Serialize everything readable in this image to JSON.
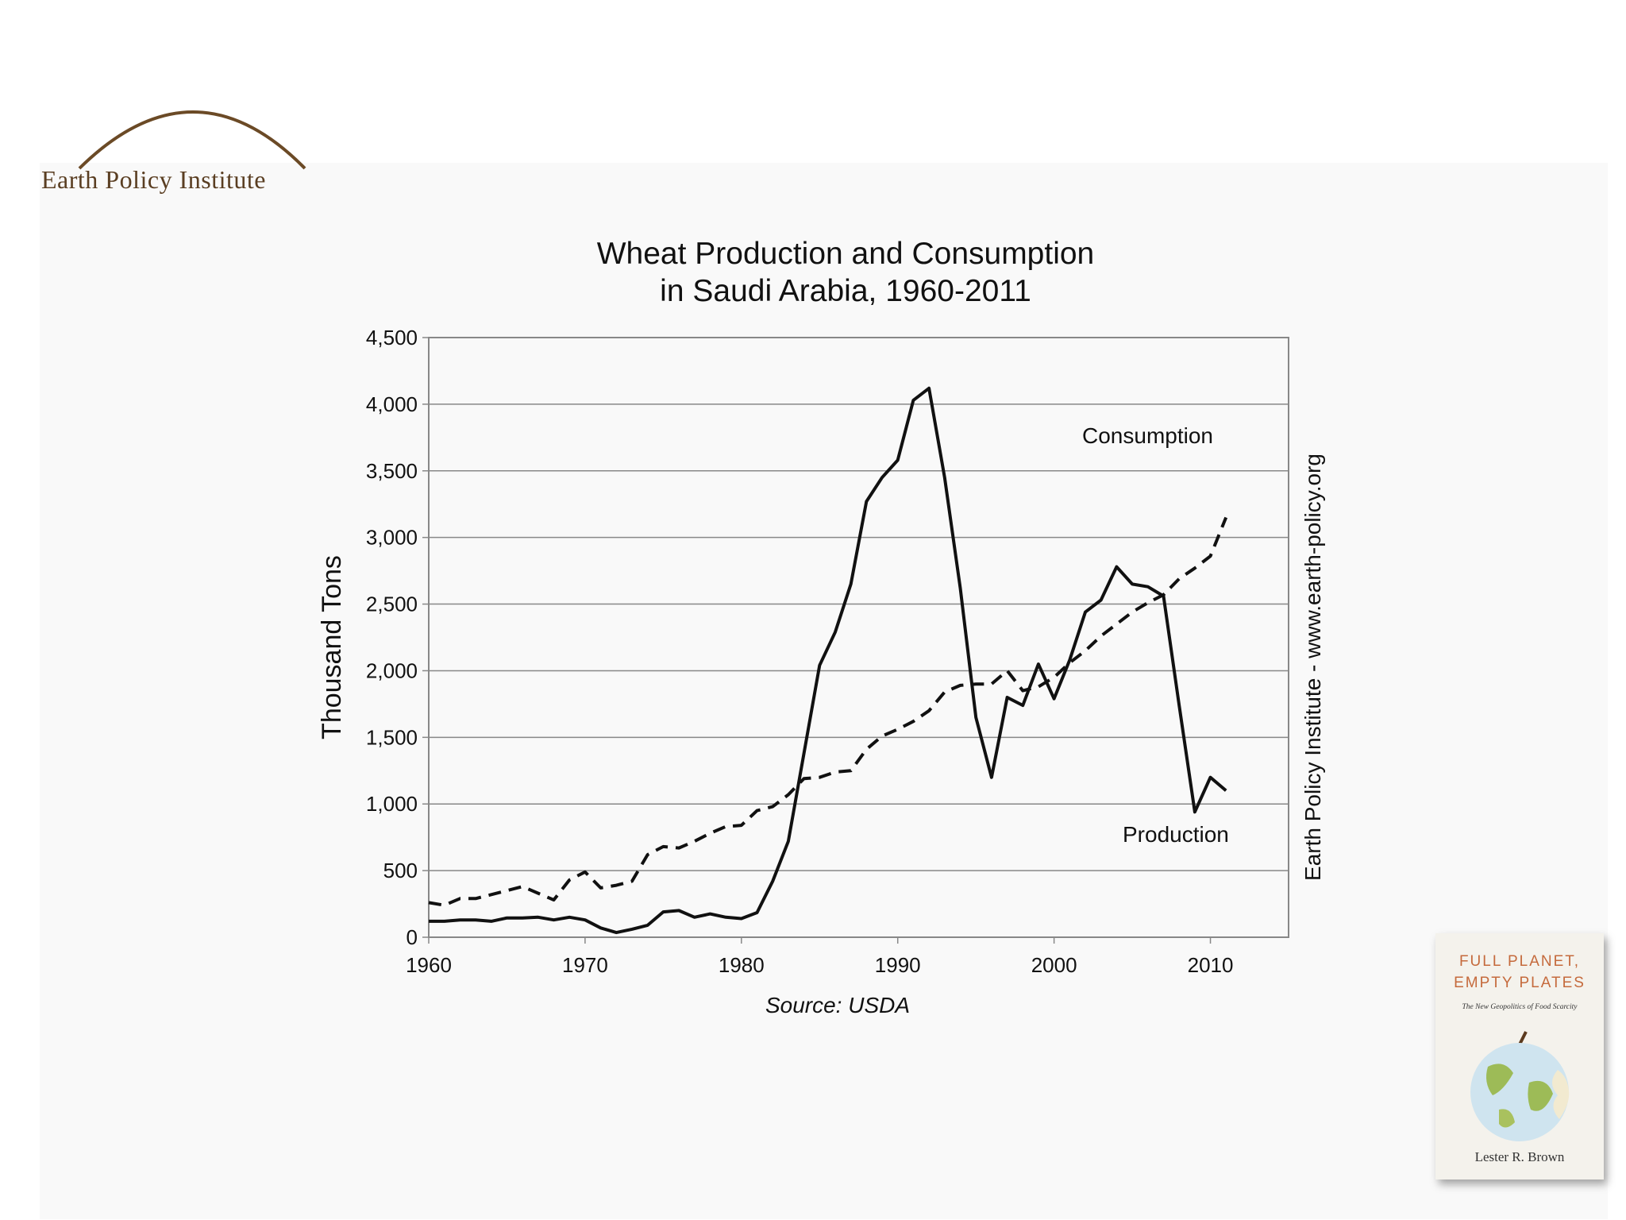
{
  "header": {
    "logo_text": "Earth Policy Institute"
  },
  "chart_data": {
    "type": "line",
    "title_line1": "Wheat Production and Consumption",
    "title_line2": "in Saudi Arabia, 1960-2011",
    "xlabel": "",
    "ylabel": "Thousand Tons",
    "xlim": [
      1960,
      2015
    ],
    "ylim": [
      0,
      4500
    ],
    "x_ticks": [
      "1960",
      "1970",
      "1980",
      "1990",
      "2000",
      "2010"
    ],
    "y_ticks": [
      "0",
      "500",
      "1,000",
      "1,500",
      "2,000",
      "2,500",
      "3,000",
      "3,500",
      "4,000",
      "4,500"
    ],
    "grid": "horizontal",
    "source": "Source: USDA",
    "side_label": "Earth Policy Institute - www.earth-policy.org",
    "x": [
      1960,
      1961,
      1962,
      1963,
      1964,
      1965,
      1966,
      1967,
      1968,
      1969,
      1970,
      1971,
      1972,
      1973,
      1974,
      1975,
      1976,
      1977,
      1978,
      1979,
      1980,
      1981,
      1982,
      1983,
      1984,
      1985,
      1986,
      1987,
      1988,
      1989,
      1990,
      1991,
      1992,
      1993,
      1994,
      1995,
      1996,
      1997,
      1998,
      1999,
      2000,
      2001,
      2002,
      2003,
      2004,
      2005,
      2006,
      2007,
      2008,
      2009,
      2010,
      2011
    ],
    "series": [
      {
        "name": "Production",
        "style": "solid",
        "values": [
          120,
          120,
          130,
          130,
          120,
          145,
          145,
          150,
          130,
          150,
          130,
          70,
          35,
          60,
          90,
          190,
          200,
          150,
          175,
          150,
          140,
          185,
          420,
          720,
          1380,
          2040,
          2290,
          2650,
          3270,
          3450,
          3580,
          4030,
          4120,
          3450,
          2620,
          1650,
          1200,
          1800,
          1740,
          2050,
          1790,
          2080,
          2440,
          2530,
          2780,
          2650,
          2630,
          2560,
          1740,
          940,
          1200,
          1100
        ]
      },
      {
        "name": "Consumption",
        "style": "dashed",
        "values": [
          260,
          240,
          290,
          290,
          320,
          350,
          380,
          330,
          280,
          430,
          490,
          370,
          390,
          420,
          620,
          680,
          670,
          720,
          780,
          830,
          840,
          950,
          980,
          1070,
          1190,
          1200,
          1240,
          1250,
          1410,
          1510,
          1560,
          1620,
          1700,
          1840,
          1890,
          1900,
          1900,
          2000,
          1850,
          1880,
          1950,
          2060,
          2150,
          2260,
          2350,
          2440,
          2510,
          2570,
          2690,
          2770,
          2860,
          3150
        ]
      }
    ],
    "annotations": [
      {
        "text": "Consumption",
        "series": "Consumption"
      },
      {
        "text": "Production",
        "series": "Production"
      }
    ]
  },
  "book": {
    "title_line1": "FULL PLANET,",
    "title_line2": "EMPTY PLATES",
    "subtitle": "The New Geopolitics of Food Scarcity",
    "author": "Lester R. Brown"
  },
  "colors": {
    "logo_brown": "#5a3e22",
    "book_title": "#c56a3c",
    "line": "#111111",
    "grid": "#888888"
  }
}
